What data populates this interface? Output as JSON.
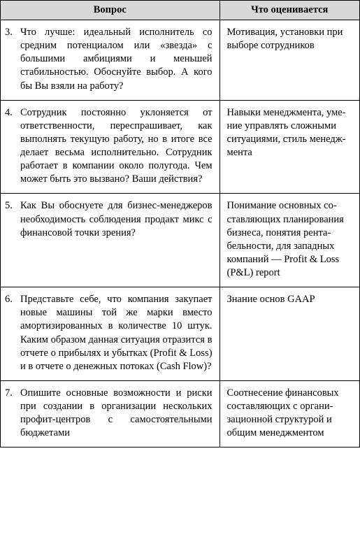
{
  "table": {
    "header": {
      "question": "Вопрос",
      "evaluation": "Что оценивается"
    },
    "rows": [
      {
        "num": "3.",
        "question": "Что лучше: идеальный исполни­тель со средним потенциалом или «звезда» с большими амби­циями и меньшей стабильно­стью. Обоснуйте выбор. А кого бы Вы взяли на работу?",
        "evaluation": "Мотивация, установки при выборе сотрудников"
      },
      {
        "num": "4.",
        "question": "Сотрудник постоянно уклоняется от ответственности, переспра­шивает, как выполнять текущую работу, но в итоге все делает весьма исполнительно. Сотрудник работает в компании около полу­года. Чем может быть это вызва­но? Ваши действия?",
        "evaluation": "Навыки менеджмента, уме­ние управлять сложными ситуациями, стиль менедж­мента"
      },
      {
        "num": "5.",
        "question": "Как Вы обоснуете для бизнес-менеджеров необходимость соблю­дения продакт микс с финансовой точки зрения?",
        "evaluation": "Понимание основных со­ставляющих планирования бизнеса, понятия рента­бельности, для западных компаний — Profit & Loss (P&L) report"
      },
      {
        "num": "6.",
        "question": "Представьте себе, что компания закупает новые машины той же марки вместо амортизиро­ванных в количестве 10 штук. Каким образом данная ситуация отразится в отчете о прибылях и убытках (Profit & Loss) и в от­чете о денежных потоках (Cash Flow)?",
        "evaluation": "Знание основ GAAP"
      },
      {
        "num": "7.",
        "question": "Опишите основные возможности и риски при создании в орга­низации нескольких профит-центров с самостоятельными бюджетами",
        "evaluation": "Соотнесение финансовых составляющих с органи­зационной структурой и общим менеджментом"
      }
    ]
  }
}
